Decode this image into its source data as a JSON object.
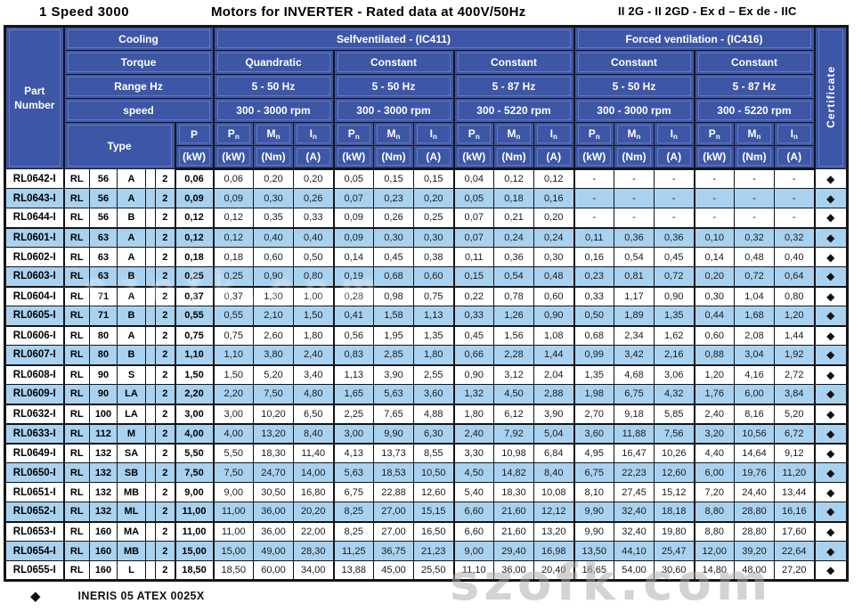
{
  "title": {
    "left": "1 Speed 3000",
    "center": "Motors for INVERTER - Rated data at 400V/50Hz",
    "right": "II 2G - II 2GD - Ex d – Ex de - IIC"
  },
  "header": {
    "part_number": "Part Number",
    "cooling_label": "Cooling",
    "torque_label": "Torque",
    "range_label": "Range Hz",
    "speed_label": "speed",
    "type_label": "Type",
    "p_label": "P",
    "p_unit": "(kW)",
    "certificate_label": "Certificate",
    "cooling_groups": [
      {
        "label": "Selfventilated - (IC411)",
        "span": 3
      },
      {
        "label": "Forced ventilation - (IC416)",
        "span": 2
      }
    ],
    "column_groups": [
      {
        "torque": "Quandratic",
        "range": "5 - 50 Hz",
        "speed": "300 - 3000 rpm"
      },
      {
        "torque": "Constant",
        "range": "5 - 50 Hz",
        "speed": "300 - 3000 rpm"
      },
      {
        "torque": "Constant",
        "range": "5 - 87 Hz",
        "speed": "300 - 5220 rpm"
      },
      {
        "torque": "Constant",
        "range": "5 - 50 Hz",
        "speed": "300 - 3000 rpm"
      },
      {
        "torque": "Constant",
        "range": "5 - 87 Hz",
        "speed": "300 - 5220 rpm"
      }
    ],
    "sub_cols": [
      {
        "sym": "P",
        "sub": "n",
        "unit": "(kW)"
      },
      {
        "sym": "M",
        "sub": "n",
        "unit": "(Nm)"
      },
      {
        "sym": "I",
        "sub": "n",
        "unit": "(A)"
      }
    ]
  },
  "cert_symbol": "◆",
  "rows": [
    {
      "part": "RL0642-I",
      "type": [
        "RL",
        "56",
        "A",
        "",
        "2"
      ],
      "p": "0,06",
      "values": [
        "0,06",
        "0,20",
        "0,20",
        "0,05",
        "0,15",
        "0,15",
        "0,04",
        "0,12",
        "0,12",
        "-",
        "-",
        "-",
        "-",
        "-",
        "-"
      ]
    },
    {
      "part": "RL0643-I",
      "type": [
        "RL",
        "56",
        "A",
        "",
        "2"
      ],
      "p": "0,09",
      "values": [
        "0,09",
        "0,30",
        "0,26",
        "0,07",
        "0,23",
        "0,20",
        "0,05",
        "0,18",
        "0,16",
        "-",
        "-",
        "-",
        "-",
        "-",
        "-"
      ]
    },
    {
      "part": "RL0644-I",
      "type": [
        "RL",
        "56",
        "B",
        "",
        "2"
      ],
      "p": "0,12",
      "values": [
        "0,12",
        "0,35",
        "0,33",
        "0,09",
        "0,26",
        "0,25",
        "0,07",
        "0,21",
        "0,20",
        "-",
        "-",
        "-",
        "-",
        "-",
        "-"
      ]
    },
    {
      "part": "RL0601-I",
      "type": [
        "RL",
        "63",
        "A",
        "",
        "2"
      ],
      "p": "0,12",
      "values": [
        "0,12",
        "0,40",
        "0,40",
        "0,09",
        "0,30",
        "0,30",
        "0,07",
        "0,24",
        "0,24",
        "0,11",
        "0,36",
        "0,36",
        "0,10",
        "0,32",
        "0,32"
      ]
    },
    {
      "part": "RL0602-I",
      "type": [
        "RL",
        "63",
        "A",
        "",
        "2"
      ],
      "p": "0,18",
      "values": [
        "0,18",
        "0,60",
        "0,50",
        "0,14",
        "0,45",
        "0,38",
        "0,11",
        "0,36",
        "0,30",
        "0,16",
        "0,54",
        "0,45",
        "0,14",
        "0,48",
        "0,40"
      ]
    },
    {
      "part": "RL0603-I",
      "type": [
        "RL",
        "63",
        "B",
        "",
        "2"
      ],
      "p": "0,25",
      "values": [
        "0,25",
        "0,90",
        "0,80",
        "0,19",
        "0,68",
        "0,60",
        "0,15",
        "0,54",
        "0,48",
        "0,23",
        "0,81",
        "0,72",
        "0,20",
        "0,72",
        "0,64"
      ]
    },
    {
      "part": "RL0604-I",
      "type": [
        "RL",
        "71",
        "A",
        "",
        "2"
      ],
      "p": "0,37",
      "values": [
        "0,37",
        "1,30",
        "1,00",
        "0,28",
        "0,98",
        "0,75",
        "0,22",
        "0,78",
        "0,60",
        "0,33",
        "1,17",
        "0,90",
        "0,30",
        "1,04",
        "0,80"
      ]
    },
    {
      "part": "RL0605-I",
      "type": [
        "RL",
        "71",
        "B",
        "",
        "2"
      ],
      "p": "0,55",
      "values": [
        "0,55",
        "2,10",
        "1,50",
        "0,41",
        "1,58",
        "1,13",
        "0,33",
        "1,26",
        "0,90",
        "0,50",
        "1,89",
        "1,35",
        "0,44",
        "1,68",
        "1,20"
      ]
    },
    {
      "part": "RL0606-I",
      "type": [
        "RL",
        "80",
        "A",
        "",
        "2"
      ],
      "p": "0,75",
      "values": [
        "0,75",
        "2,60",
        "1,80",
        "0,56",
        "1,95",
        "1,35",
        "0,45",
        "1,56",
        "1,08",
        "0,68",
        "2,34",
        "1,62",
        "0,60",
        "2,08",
        "1,44"
      ]
    },
    {
      "part": "RL0607-I",
      "type": [
        "RL",
        "80",
        "B",
        "",
        "2"
      ],
      "p": "1,10",
      "values": [
        "1,10",
        "3,80",
        "2,40",
        "0,83",
        "2,85",
        "1,80",
        "0,66",
        "2,28",
        "1,44",
        "0,99",
        "3,42",
        "2,16",
        "0,88",
        "3,04",
        "1,92"
      ]
    },
    {
      "part": "RL0608-I",
      "type": [
        "RL",
        "90",
        "S",
        "",
        "2"
      ],
      "p": "1,50",
      "values": [
        "1,50",
        "5,20",
        "3,40",
        "1,13",
        "3,90",
        "2,55",
        "0,90",
        "3,12",
        "2,04",
        "1,35",
        "4,68",
        "3,06",
        "1,20",
        "4,16",
        "2,72"
      ]
    },
    {
      "part": "RL0609-I",
      "type": [
        "RL",
        "90",
        "LA",
        "",
        "2"
      ],
      "p": "2,20",
      "values": [
        "2,20",
        "7,50",
        "4,80",
        "1,65",
        "5,63",
        "3,60",
        "1,32",
        "4,50",
        "2,88",
        "1,98",
        "6,75",
        "4,32",
        "1,76",
        "6,00",
        "3,84"
      ]
    },
    {
      "part": "RL0632-I",
      "type": [
        "RL",
        "100",
        "LA",
        "",
        "2"
      ],
      "p": "3,00",
      "values": [
        "3,00",
        "10,20",
        "6,50",
        "2,25",
        "7,65",
        "4,88",
        "1,80",
        "6,12",
        "3,90",
        "2,70",
        "9,18",
        "5,85",
        "2,40",
        "8,16",
        "5,20"
      ]
    },
    {
      "part": "RL0633-I",
      "type": [
        "RL",
        "112",
        "M",
        "",
        "2"
      ],
      "p": "4,00",
      "values": [
        "4,00",
        "13,20",
        "8,40",
        "3,00",
        "9,90",
        "6,30",
        "2,40",
        "7,92",
        "5,04",
        "3,60",
        "11,88",
        "7,56",
        "3,20",
        "10,56",
        "6,72"
      ]
    },
    {
      "part": "RL0649-I",
      "type": [
        "RL",
        "132",
        "SA",
        "",
        "2"
      ],
      "p": "5,50",
      "values": [
        "5,50",
        "18,30",
        "11,40",
        "4,13",
        "13,73",
        "8,55",
        "3,30",
        "10,98",
        "6,84",
        "4,95",
        "16,47",
        "10,26",
        "4,40",
        "14,64",
        "9,12"
      ]
    },
    {
      "part": "RL0650-I",
      "type": [
        "RL",
        "132",
        "SB",
        "",
        "2"
      ],
      "p": "7,50",
      "values": [
        "7,50",
        "24,70",
        "14,00",
        "5,63",
        "18,53",
        "10,50",
        "4,50",
        "14,82",
        "8,40",
        "6,75",
        "22,23",
        "12,60",
        "6,00",
        "19,76",
        "11,20"
      ]
    },
    {
      "part": "RL0651-I",
      "type": [
        "RL",
        "132",
        "MB",
        "",
        "2"
      ],
      "p": "9,00",
      "values": [
        "9,00",
        "30,50",
        "16,80",
        "6,75",
        "22,88",
        "12,60",
        "5,40",
        "18,30",
        "10,08",
        "8,10",
        "27,45",
        "15,12",
        "7,20",
        "24,40",
        "13,44"
      ]
    },
    {
      "part": "RL0652-I",
      "type": [
        "RL",
        "132",
        "ML",
        "",
        "2"
      ],
      "p": "11,00",
      "values": [
        "11,00",
        "36,00",
        "20,20",
        "8,25",
        "27,00",
        "15,15",
        "6,60",
        "21,60",
        "12,12",
        "9,90",
        "32,40",
        "18,18",
        "8,80",
        "28,80",
        "16,16"
      ]
    },
    {
      "part": "RL0653-I",
      "type": [
        "RL",
        "160",
        "MA",
        "",
        "2"
      ],
      "p": "11,00",
      "values": [
        "11,00",
        "36,00",
        "22,00",
        "8,25",
        "27,00",
        "16,50",
        "6,60",
        "21,60",
        "13,20",
        "9,90",
        "32,40",
        "19,80",
        "8,80",
        "28,80",
        "17,60"
      ]
    },
    {
      "part": "RL0654-I",
      "type": [
        "RL",
        "160",
        "MB",
        "",
        "2"
      ],
      "p": "15,00",
      "values": [
        "15,00",
        "49,00",
        "28,30",
        "11,25",
        "36,75",
        "21,23",
        "9,00",
        "29,40",
        "16,98",
        "13,50",
        "44,10",
        "25,47",
        "12,00",
        "39,20",
        "22,64"
      ]
    },
    {
      "part": "RL0655-I",
      "type": [
        "RL",
        "160",
        "L",
        "",
        "2"
      ],
      "p": "18,50",
      "values": [
        "18,50",
        "60,00",
        "34,00",
        "13,88",
        "45,00",
        "25,50",
        "11,10",
        "36,00",
        "20,40",
        "16,65",
        "54,00",
        "30,60",
        "14,80",
        "48,00",
        "27,20"
      ]
    }
  ],
  "footer": {
    "diamond": "◆",
    "text": "INERIS 05 ATEX 0025X"
  },
  "watermark": {
    "text": "szofk.com"
  },
  "colors": {
    "header_blue": "#3d56a6",
    "row_blue": "#a9d2f1",
    "row_white": "#ffffff",
    "border": "#141414",
    "header_text": "#ffffff",
    "watermark_grey": "#a8a8a8"
  }
}
